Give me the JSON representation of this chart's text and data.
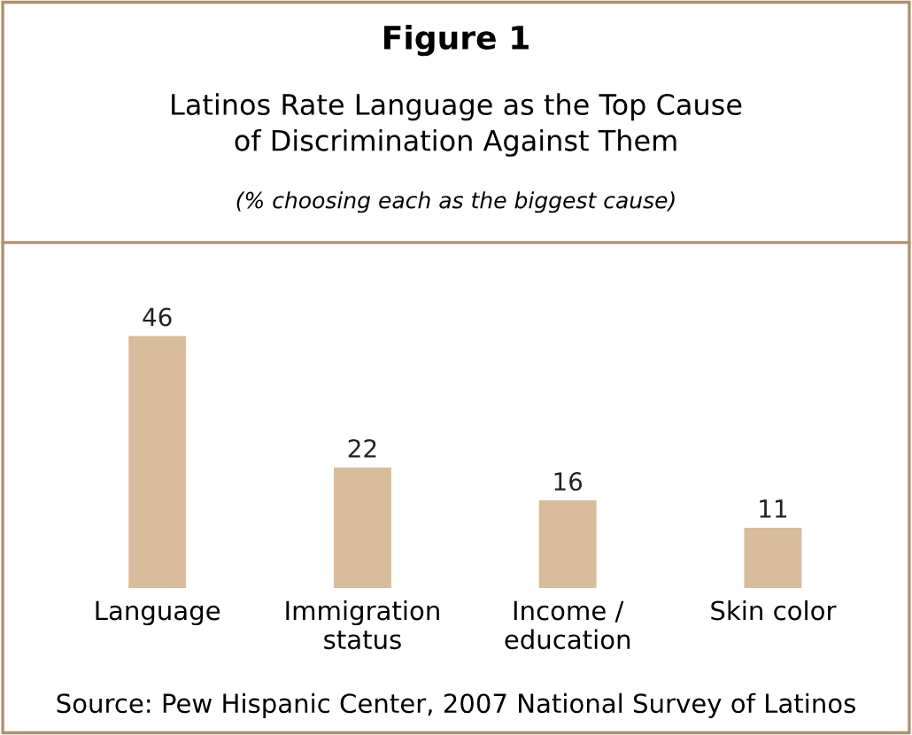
{
  "chart_data": {
    "type": "bar",
    "title": "Figure 1",
    "subtitle": "Latinos Rate Language as the Top Cause\nof Discrimination Against Them",
    "annotations": [
      "(% choosing each as the biggest cause)",
      "Source: Pew Hispanic Center, 2007 National Survey of Latinos"
    ],
    "categories": [
      "Language",
      "Immigration\nstatus",
      "Income /\neducation",
      "Skin color"
    ],
    "values": [
      46,
      22,
      16,
      11
    ],
    "color": "#d8bc9c",
    "data_labels": true,
    "grid": false,
    "legend": false
  }
}
